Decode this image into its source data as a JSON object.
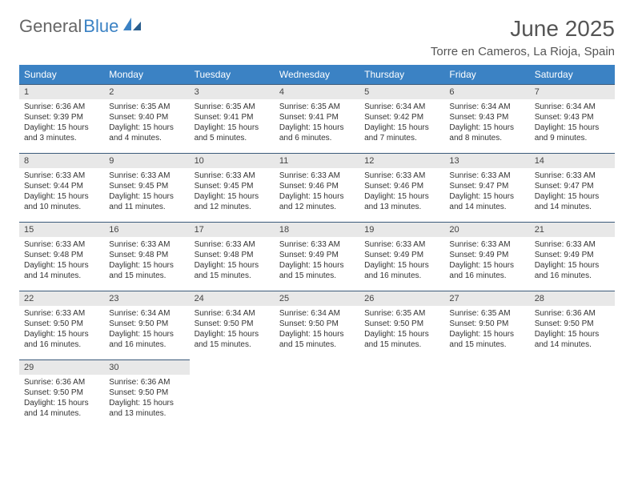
{
  "logo": {
    "word1": "General",
    "word2": "Blue"
  },
  "title": "June 2025",
  "location": "Torre en Cameros, La Rioja, Spain",
  "weekdays": [
    "Sunday",
    "Monday",
    "Tuesday",
    "Wednesday",
    "Thursday",
    "Friday",
    "Saturday"
  ],
  "colors": {
    "header_bg": "#3b82c4",
    "header_text": "#ffffff",
    "daynum_bg": "#e8e8e8",
    "rule": "#3b5a7a",
    "body_text": "#333333"
  },
  "weeks": [
    [
      {
        "n": "1",
        "sr": "Sunrise: 6:36 AM",
        "ss": "Sunset: 9:39 PM",
        "d1": "Daylight: 15 hours",
        "d2": "and 3 minutes."
      },
      {
        "n": "2",
        "sr": "Sunrise: 6:35 AM",
        "ss": "Sunset: 9:40 PM",
        "d1": "Daylight: 15 hours",
        "d2": "and 4 minutes."
      },
      {
        "n": "3",
        "sr": "Sunrise: 6:35 AM",
        "ss": "Sunset: 9:41 PM",
        "d1": "Daylight: 15 hours",
        "d2": "and 5 minutes."
      },
      {
        "n": "4",
        "sr": "Sunrise: 6:35 AM",
        "ss": "Sunset: 9:41 PM",
        "d1": "Daylight: 15 hours",
        "d2": "and 6 minutes."
      },
      {
        "n": "5",
        "sr": "Sunrise: 6:34 AM",
        "ss": "Sunset: 9:42 PM",
        "d1": "Daylight: 15 hours",
        "d2": "and 7 minutes."
      },
      {
        "n": "6",
        "sr": "Sunrise: 6:34 AM",
        "ss": "Sunset: 9:43 PM",
        "d1": "Daylight: 15 hours",
        "d2": "and 8 minutes."
      },
      {
        "n": "7",
        "sr": "Sunrise: 6:34 AM",
        "ss": "Sunset: 9:43 PM",
        "d1": "Daylight: 15 hours",
        "d2": "and 9 minutes."
      }
    ],
    [
      {
        "n": "8",
        "sr": "Sunrise: 6:33 AM",
        "ss": "Sunset: 9:44 PM",
        "d1": "Daylight: 15 hours",
        "d2": "and 10 minutes."
      },
      {
        "n": "9",
        "sr": "Sunrise: 6:33 AM",
        "ss": "Sunset: 9:45 PM",
        "d1": "Daylight: 15 hours",
        "d2": "and 11 minutes."
      },
      {
        "n": "10",
        "sr": "Sunrise: 6:33 AM",
        "ss": "Sunset: 9:45 PM",
        "d1": "Daylight: 15 hours",
        "d2": "and 12 minutes."
      },
      {
        "n": "11",
        "sr": "Sunrise: 6:33 AM",
        "ss": "Sunset: 9:46 PM",
        "d1": "Daylight: 15 hours",
        "d2": "and 12 minutes."
      },
      {
        "n": "12",
        "sr": "Sunrise: 6:33 AM",
        "ss": "Sunset: 9:46 PM",
        "d1": "Daylight: 15 hours",
        "d2": "and 13 minutes."
      },
      {
        "n": "13",
        "sr": "Sunrise: 6:33 AM",
        "ss": "Sunset: 9:47 PM",
        "d1": "Daylight: 15 hours",
        "d2": "and 14 minutes."
      },
      {
        "n": "14",
        "sr": "Sunrise: 6:33 AM",
        "ss": "Sunset: 9:47 PM",
        "d1": "Daylight: 15 hours",
        "d2": "and 14 minutes."
      }
    ],
    [
      {
        "n": "15",
        "sr": "Sunrise: 6:33 AM",
        "ss": "Sunset: 9:48 PM",
        "d1": "Daylight: 15 hours",
        "d2": "and 14 minutes."
      },
      {
        "n": "16",
        "sr": "Sunrise: 6:33 AM",
        "ss": "Sunset: 9:48 PM",
        "d1": "Daylight: 15 hours",
        "d2": "and 15 minutes."
      },
      {
        "n": "17",
        "sr": "Sunrise: 6:33 AM",
        "ss": "Sunset: 9:48 PM",
        "d1": "Daylight: 15 hours",
        "d2": "and 15 minutes."
      },
      {
        "n": "18",
        "sr": "Sunrise: 6:33 AM",
        "ss": "Sunset: 9:49 PM",
        "d1": "Daylight: 15 hours",
        "d2": "and 15 minutes."
      },
      {
        "n": "19",
        "sr": "Sunrise: 6:33 AM",
        "ss": "Sunset: 9:49 PM",
        "d1": "Daylight: 15 hours",
        "d2": "and 16 minutes."
      },
      {
        "n": "20",
        "sr": "Sunrise: 6:33 AM",
        "ss": "Sunset: 9:49 PM",
        "d1": "Daylight: 15 hours",
        "d2": "and 16 minutes."
      },
      {
        "n": "21",
        "sr": "Sunrise: 6:33 AM",
        "ss": "Sunset: 9:49 PM",
        "d1": "Daylight: 15 hours",
        "d2": "and 16 minutes."
      }
    ],
    [
      {
        "n": "22",
        "sr": "Sunrise: 6:33 AM",
        "ss": "Sunset: 9:50 PM",
        "d1": "Daylight: 15 hours",
        "d2": "and 16 minutes."
      },
      {
        "n": "23",
        "sr": "Sunrise: 6:34 AM",
        "ss": "Sunset: 9:50 PM",
        "d1": "Daylight: 15 hours",
        "d2": "and 16 minutes."
      },
      {
        "n": "24",
        "sr": "Sunrise: 6:34 AM",
        "ss": "Sunset: 9:50 PM",
        "d1": "Daylight: 15 hours",
        "d2": "and 15 minutes."
      },
      {
        "n": "25",
        "sr": "Sunrise: 6:34 AM",
        "ss": "Sunset: 9:50 PM",
        "d1": "Daylight: 15 hours",
        "d2": "and 15 minutes."
      },
      {
        "n": "26",
        "sr": "Sunrise: 6:35 AM",
        "ss": "Sunset: 9:50 PM",
        "d1": "Daylight: 15 hours",
        "d2": "and 15 minutes."
      },
      {
        "n": "27",
        "sr": "Sunrise: 6:35 AM",
        "ss": "Sunset: 9:50 PM",
        "d1": "Daylight: 15 hours",
        "d2": "and 15 minutes."
      },
      {
        "n": "28",
        "sr": "Sunrise: 6:36 AM",
        "ss": "Sunset: 9:50 PM",
        "d1": "Daylight: 15 hours",
        "d2": "and 14 minutes."
      }
    ],
    [
      {
        "n": "29",
        "sr": "Sunrise: 6:36 AM",
        "ss": "Sunset: 9:50 PM",
        "d1": "Daylight: 15 hours",
        "d2": "and 14 minutes."
      },
      {
        "n": "30",
        "sr": "Sunrise: 6:36 AM",
        "ss": "Sunset: 9:50 PM",
        "d1": "Daylight: 15 hours",
        "d2": "and 13 minutes."
      },
      {
        "empty": true
      },
      {
        "empty": true
      },
      {
        "empty": true
      },
      {
        "empty": true
      },
      {
        "empty": true
      }
    ]
  ]
}
